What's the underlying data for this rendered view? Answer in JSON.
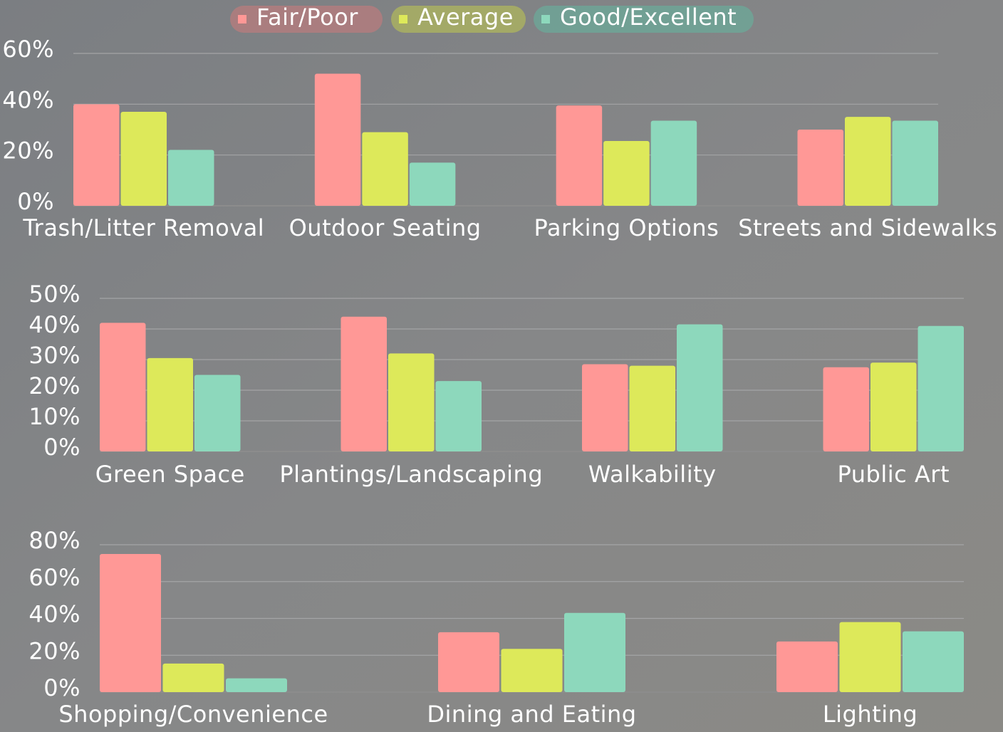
{
  "chart_data": [
    {
      "type": "bar",
      "categories": [
        "Trash/Litter Removal",
        "Outdoor Seating",
        "Parking Options",
        "Streets and Sidewalks"
      ],
      "series": [
        {
          "name": "Fair/Poor",
          "color": "#ff9896",
          "values": [
            40,
            52,
            39.5,
            30
          ]
        },
        {
          "name": "Average",
          "color": "#dde95a",
          "values": [
            37,
            29,
            25.5,
            35
          ]
        },
        {
          "name": "Good/Excellent",
          "color": "#8dd8bc",
          "values": [
            22,
            17,
            33.5,
            33.5
          ]
        }
      ],
      "ylim": [
        0,
        60
      ],
      "yticks": [
        {
          "value": 0,
          "label": "0%"
        },
        {
          "value": 20,
          "label": "20%"
        },
        {
          "value": 40,
          "label": "40%"
        },
        {
          "value": 60,
          "label": "60%"
        }
      ],
      "grid": true,
      "legend": "top"
    },
    {
      "type": "bar",
      "categories": [
        "Green Space",
        "Plantings/Landscaping",
        "Walkability",
        "Public Art"
      ],
      "series": [
        {
          "color": "#ff9896",
          "values": [
            42,
            44,
            28.5,
            27.5
          ]
        },
        {
          "color": "#dde95a",
          "values": [
            30.5,
            32,
            28,
            29
          ]
        },
        {
          "color": "#8dd8bc",
          "values": [
            25,
            23,
            41.5,
            41
          ]
        }
      ],
      "ylim": [
        0,
        50
      ],
      "yticks": [
        {
          "value": 0,
          "label": "0%"
        },
        {
          "value": 10,
          "label": "10%"
        },
        {
          "value": 20,
          "label": "20%"
        },
        {
          "value": 30,
          "label": "30%"
        },
        {
          "value": 40,
          "label": "40%"
        },
        {
          "value": 50,
          "label": "50%"
        }
      ],
      "grid": true
    },
    {
      "type": "bar",
      "categories": [
        "Shopping/Convenience",
        "Dining and Eating",
        "Lighting"
      ],
      "series": [
        {
          "color": "#ff9896",
          "values": [
            75,
            32.5,
            27.5
          ]
        },
        {
          "color": "#dde95a",
          "values": [
            15.5,
            23.5,
            38
          ]
        },
        {
          "color": "#8dd8bc",
          "values": [
            7.5,
            43,
            33
          ]
        }
      ],
      "ylim": [
        0,
        80
      ],
      "yticks": [
        {
          "value": 0,
          "label": "0%"
        },
        {
          "value": 20,
          "label": "20%"
        },
        {
          "value": 40,
          "label": "40%"
        },
        {
          "value": 60,
          "label": "60%"
        },
        {
          "value": 80,
          "label": "80%"
        }
      ],
      "grid": true
    }
  ]
}
